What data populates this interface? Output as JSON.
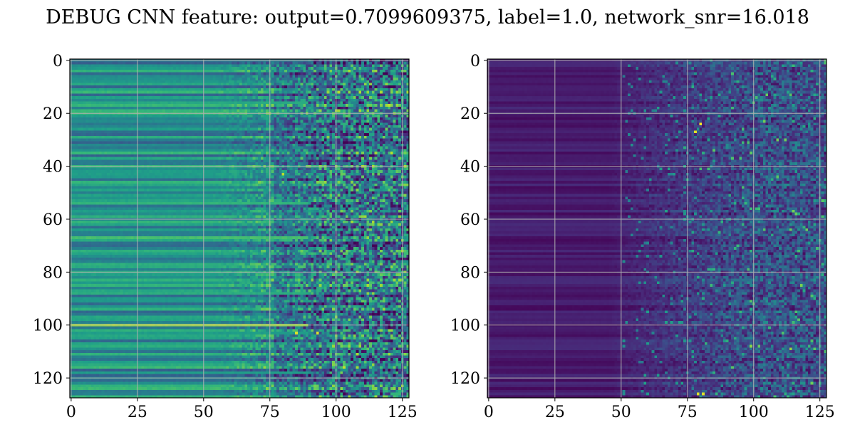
{
  "title": "DEBUG CNN feature: output=0.7099609375, label=1.0, network_snr=16.018",
  "colormap": "viridis",
  "colors": {
    "viridis": [
      "#440154",
      "#482878",
      "#3e4989",
      "#31688e",
      "#26828e",
      "#1f9e89",
      "#35b779",
      "#6ece58",
      "#b5de2b",
      "#fde725"
    ],
    "grid": "#b0b0b0"
  },
  "chart_data": [
    {
      "type": "heatmap",
      "panel": "left",
      "colormap": "viridis",
      "grid": true,
      "shape": [
        128,
        128
      ],
      "xlim": [
        -0.5,
        127.5
      ],
      "ylim": [
        127.5,
        -0.5
      ],
      "xticks": [
        0,
        25,
        50,
        75,
        100,
        125
      ],
      "yticks": [
        0,
        20,
        40,
        60,
        80,
        100,
        120
      ],
      "description_of_values": "normalized 0-1; smooth row-wise banding for columns 0-50, increasing noise toward columns 75-127",
      "row_base_examples": {
        "rows": [
          0,
          16,
          54,
          67,
          88,
          100,
          103,
          118
        ],
        "values": [
          0.42,
          0.6,
          0.65,
          0.7,
          0.62,
          0.85,
          0.55,
          0.55
        ]
      },
      "hotspots": [
        {
          "x": 85,
          "y": 103,
          "value": 0.95
        },
        {
          "x": 93,
          "y": 103,
          "value": 0.95
        },
        {
          "x": 80,
          "y": 43,
          "value": 0.9
        }
      ]
    },
    {
      "type": "heatmap",
      "panel": "right",
      "colormap": "viridis",
      "grid": true,
      "shape": [
        128,
        128
      ],
      "xlim": [
        -0.5,
        127.5
      ],
      "ylim": [
        127.5,
        -0.5
      ],
      "xticks": [
        0,
        25,
        50,
        75,
        100,
        125
      ],
      "yticks": [
        0,
        20,
        40,
        60,
        80,
        100,
        120
      ],
      "description_of_values": "normalized 0-1; mostly low (dark purple), sparse noisy bright pixels in columns 50-127",
      "hotspots": [
        {
          "x": 80,
          "y": 24,
          "value": 1.0
        },
        {
          "x": 78,
          "y": 27,
          "value": 0.95
        },
        {
          "x": 79,
          "y": 126,
          "value": 0.95
        },
        {
          "x": 81,
          "y": 126,
          "value": 0.95
        },
        {
          "x": 80,
          "y": 41,
          "value": 0.7
        }
      ]
    }
  ]
}
